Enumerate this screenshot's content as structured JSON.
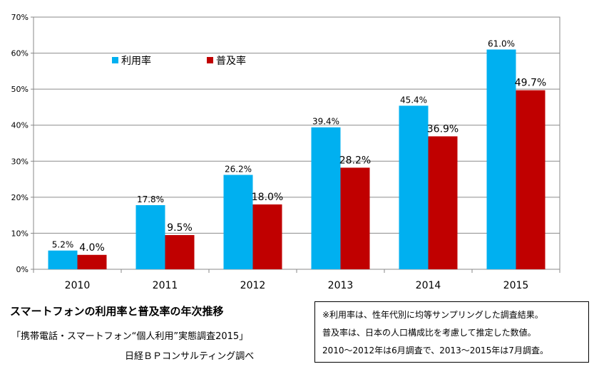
{
  "chart_data": {
    "type": "bar",
    "categories": [
      "2010",
      "2011",
      "2012",
      "2013",
      "2014",
      "2015"
    ],
    "series": [
      {
        "name": "利用率",
        "values": [
          5.2,
          17.8,
          26.2,
          39.4,
          45.4,
          61.0
        ],
        "labels": [
          "5.2%",
          "17.8%",
          "26.2%",
          "39.4%",
          "45.4%",
          "61.0%"
        ],
        "color": "#00B0F0"
      },
      {
        "name": "普及率",
        "values": [
          4.0,
          9.5,
          18.0,
          28.2,
          36.9,
          49.7
        ],
        "labels": [
          "4.0%",
          "9.5%",
          "18.0%",
          "28.2%",
          "36.9%",
          "49.7%"
        ],
        "color": "#C00000"
      }
    ],
    "ylim": [
      0,
      70
    ],
    "yticks": [
      "0%",
      "10%",
      "20%",
      "30%",
      "40%",
      "50%",
      "60%",
      "70%"
    ],
    "grid": true,
    "legend": "top-left"
  },
  "caption": {
    "title": "スマートフォンの利用率と普及率の年次推移",
    "survey": "「携帯電話・スマートフォン“個人利用”実態調査2015」",
    "source": "日経ＢＰコンサルティング調べ"
  },
  "note": {
    "lines": [
      "※利用率は、性年代別に均等サンプリングした調査結果。",
      "普及率は、日本の人口構成比を考慮して推定した数値。",
      "2010～2012年は6月調査で、2013～2015年は7月調査。"
    ]
  }
}
